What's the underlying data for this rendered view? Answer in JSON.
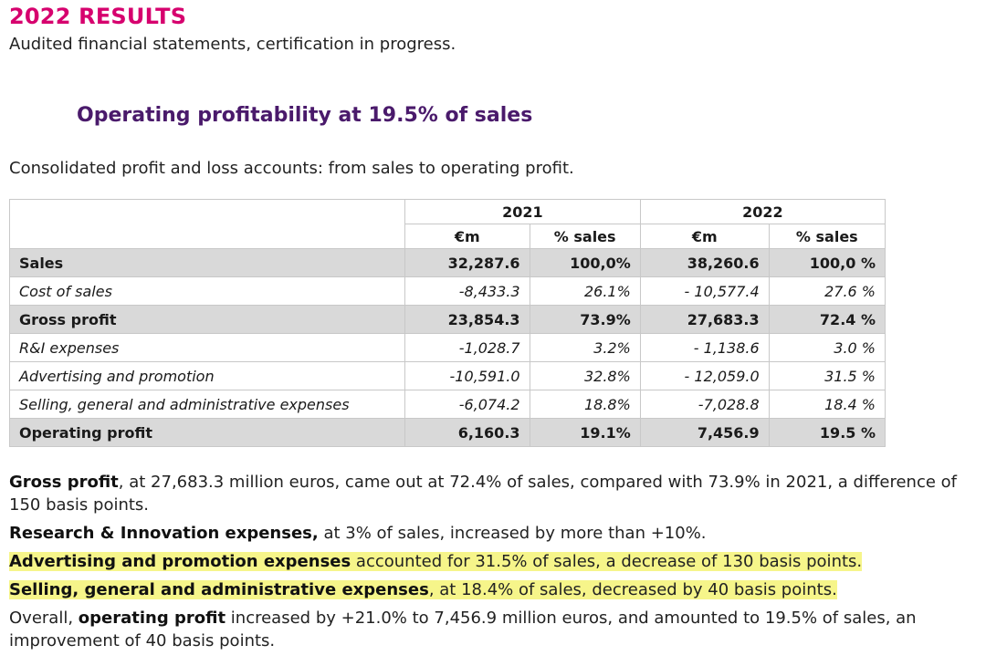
{
  "title": "2022 RESULTS",
  "subtitle": "Audited financial statements, certification in progress.",
  "headline": "Operating profitability at 19.5% of sales",
  "intro": "Consolidated profit and loss accounts: from sales to operating profit.",
  "table": {
    "years": [
      "2021",
      "2022"
    ],
    "col_em": "€m",
    "col_pct": "% sales",
    "rows": [
      {
        "label": "Sales",
        "v2021": "32,287.6",
        "p2021": "100,0%",
        "v2022": "38,260.6",
        "p2022": "100,0 %"
      },
      {
        "label": "Cost of sales",
        "v2021": "-8,433.3",
        "p2021": "26.1%",
        "v2022": "- 10,577.4",
        "p2022": "27.6 %"
      },
      {
        "label": "Gross profit",
        "v2021": "23,854.3",
        "p2021": "73.9%",
        "v2022": "27,683.3",
        "p2022": "72.4 %"
      },
      {
        "label": "R&I expenses",
        "v2021": "-1,028.7",
        "p2021": "3.2%",
        "v2022": "- 1,138.6",
        "p2022": "3.0 %"
      },
      {
        "label": "Advertising and promotion",
        "v2021": "-10,591.0",
        "p2021": "32.8%",
        "v2022": "- 12,059.0",
        "p2022": "31.5 %"
      },
      {
        "label": "Selling, general and administrative expenses",
        "v2021": "-6,074.2",
        "p2021": "18.8%",
        "v2022": "-7,028.8",
        "p2022": "18.4 %"
      },
      {
        "label": "Operating profit",
        "v2021": "6,160.3",
        "p2021": "19.1%",
        "v2022": "7,456.9",
        "p2022": "19.5 %"
      }
    ]
  },
  "commentary": {
    "p1_bold": "Gross profit",
    "p1_rest": ", at 27,683.3 million euros, came out at 72.4% of sales, compared with 73.9% in 2021, a difference of 150 basis points.",
    "p2_bold": "Research & Innovation expenses,",
    "p2_rest": " at 3% of sales, increased by more than +10%.",
    "p3_bold": "Advertising and promotion expenses",
    "p3_rest": " accounted for 31.5% of sales, a decrease of 130 basis points.",
    "p4_bold": "Selling, general and administrative expenses",
    "p4_rest": ", at 18.4% of sales, decreased by 40 basis points.",
    "p5_pre": "Overall, ",
    "p5_bold": "operating profit",
    "p5_rest": " increased by +21.0% to 7,456.9 million euros, and amounted to 19.5% of sales, an improvement of 40 basis points."
  },
  "colors": {
    "title": "#d6006e",
    "headline": "#4a1a6b",
    "highlight": "#f6f58a",
    "row_shade": "#d9d9d9"
  }
}
